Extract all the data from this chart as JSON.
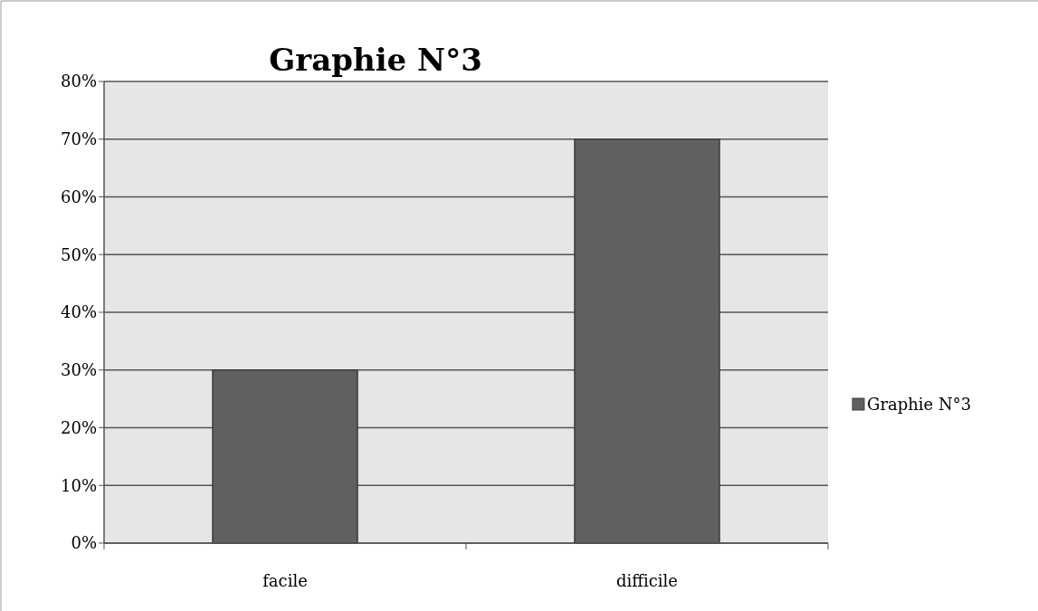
{
  "chart_data": {
    "type": "bar",
    "title": "Graphie N°3",
    "categories": [
      "facile",
      "difficile"
    ],
    "series": [
      {
        "name": "Graphie N°3",
        "color": "#606060",
        "values": [
          30,
          70
        ]
      }
    ],
    "ylim": [
      0,
      80
    ],
    "yticks": [
      {
        "value": 0,
        "label": "0%"
      },
      {
        "value": 10,
        "label": "10%"
      },
      {
        "value": 20,
        "label": "20%"
      },
      {
        "value": 30,
        "label": "30%"
      },
      {
        "value": 40,
        "label": "40%"
      },
      {
        "value": 50,
        "label": "50%"
      },
      {
        "value": 60,
        "label": "60%"
      },
      {
        "value": 70,
        "label": "70%"
      },
      {
        "value": 80,
        "label": "80%"
      }
    ],
    "grid": "y",
    "legend": "right"
  }
}
